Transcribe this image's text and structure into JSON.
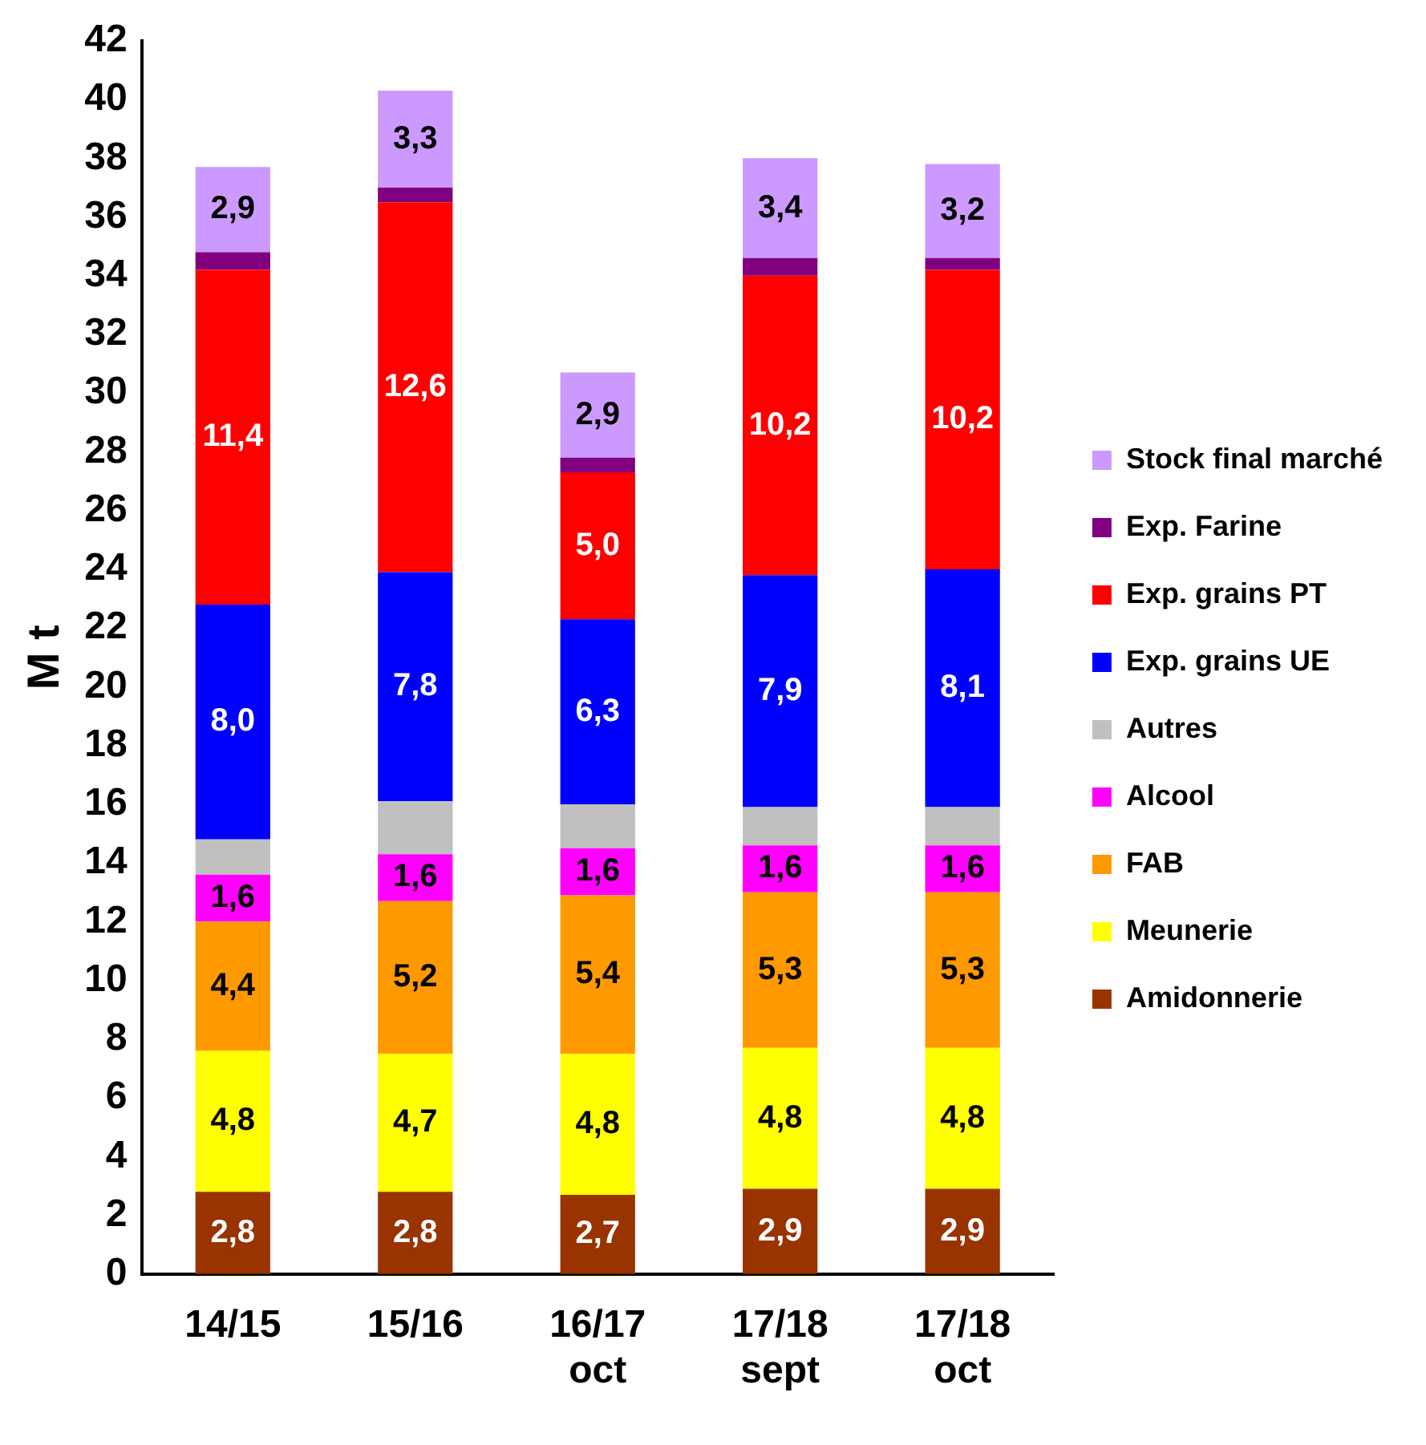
{
  "chart_data": {
    "type": "bar",
    "stacked": true,
    "ylabel": "M t",
    "categories": [
      "14/15",
      "15/16",
      "16/17 oct",
      "17/18 sept",
      "17/18 oct"
    ],
    "ylim": [
      0,
      42
    ],
    "yticks": [
      0,
      2,
      4,
      6,
      8,
      10,
      12,
      14,
      16,
      18,
      20,
      22,
      24,
      26,
      28,
      30,
      32,
      34,
      36,
      38,
      40,
      42
    ],
    "grid": false,
    "legend": "right",
    "series": [
      {
        "name": "Amidonnerie",
        "color": "#993300",
        "values": [
          2.8,
          2.8,
          2.7,
          2.9,
          2.9
        ],
        "value_labels": [
          "2,8",
          "2,8",
          "2,7",
          "2,9",
          "2,9"
        ]
      },
      {
        "name": "Meunerie",
        "color": "#ffff00",
        "values": [
          4.8,
          4.7,
          4.8,
          4.8,
          4.8
        ],
        "value_labels": [
          "4,8",
          "4,7",
          "4,8",
          "4,8",
          "4,8"
        ]
      },
      {
        "name": "FAB",
        "color": "#ff9900",
        "values": [
          4.4,
          5.2,
          5.4,
          5.3,
          5.3
        ],
        "value_labels": [
          "4,4",
          "5,2",
          "5,4",
          "5,3",
          "5,3"
        ]
      },
      {
        "name": "Alcool",
        "color": "#ff00ff",
        "values": [
          1.6,
          1.6,
          1.6,
          1.6,
          1.6
        ],
        "value_labels": [
          "1,6",
          "1,6",
          "1,6",
          "1,6",
          "1,6"
        ]
      },
      {
        "name": "Autres",
        "color": "#c0c0c0",
        "values": [
          1.2,
          1.8,
          1.5,
          1.3,
          1.3
        ]
      },
      {
        "name": "Exp. grains UE",
        "color": "#0000ff",
        "values": [
          8.0,
          7.8,
          6.3,
          7.9,
          8.1
        ],
        "value_labels": [
          "8,0",
          "7,8",
          "6,3",
          "7,9",
          "8,1"
        ]
      },
      {
        "name": "Exp. grains PT",
        "color": "#ff0000",
        "values": [
          11.4,
          12.6,
          5.0,
          10.2,
          10.2
        ],
        "value_labels": [
          "11,4",
          "12,6",
          "5,0",
          "10,2",
          "10,2"
        ]
      },
      {
        "name": "Exp. Farine",
        "color": "#800080",
        "values": [
          0.6,
          0.5,
          0.5,
          0.6,
          0.4
        ]
      },
      {
        "name": "Stock final marché",
        "color": "#cc99ff",
        "values": [
          2.9,
          3.3,
          2.9,
          3.4,
          3.2
        ],
        "value_labels": [
          "2,9",
          "3,3",
          "2,9",
          "3,4",
          "3,2"
        ]
      }
    ]
  }
}
